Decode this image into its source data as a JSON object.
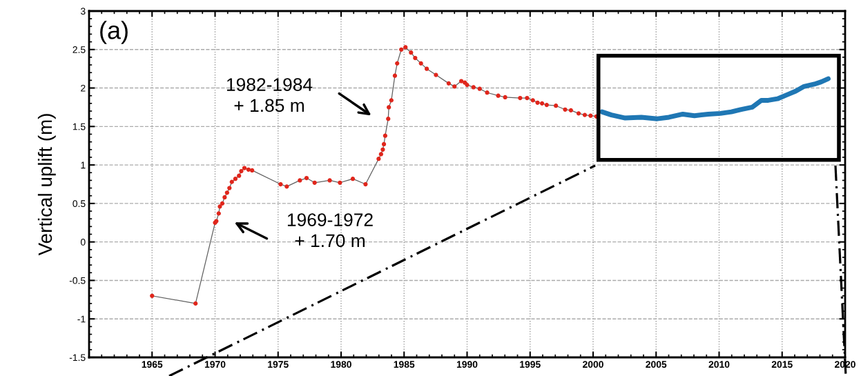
{
  "chart_data": {
    "type": "line",
    "ylabel": "Vertical uplift (m)",
    "xlim": [
      1960,
      2020
    ],
    "xticks": [
      {
        "value": 1960,
        "label": null
      },
      1965,
      1970,
      1975,
      1980,
      1985,
      1990,
      1995,
      2000,
      2005,
      2010,
      2015,
      2020
    ],
    "ylim": [
      -1.5,
      3
    ],
    "yticks": [
      -1.5,
      -1,
      -0.5,
      0,
      0.5,
      1,
      1.5,
      2,
      2.5,
      3
    ],
    "grid": true,
    "marker": "circle",
    "line_style": "solid",
    "series": [
      {
        "color": "#e0261c",
        "x": [
          1965.0,
          1968.45,
          1970.0,
          1970.1,
          1970.29,
          1970.38,
          1970.57,
          1970.76,
          1970.95,
          1971.14,
          1971.33,
          1971.61,
          1971.9,
          1972.08,
          1972.33,
          1972.65,
          1972.94,
          1975.2,
          1975.69,
          1976.73,
          1977.26,
          1977.9,
          1979.1,
          1979.91,
          1980.93,
          1981.94,
          1982.98,
          1983.17,
          1983.31,
          1983.4,
          1983.5,
          1983.74,
          1983.79,
          1983.99,
          1984.27,
          1984.45,
          1984.78,
          1985.11,
          1985.55,
          1985.88,
          1986.34,
          1986.8,
          1987.53,
          1988.54,
          1989.0,
          1989.54,
          1989.82,
          1990.0,
          1990.51,
          1991.0,
          1991.59,
          1992.47,
          1993.02,
          1994.21,
          1994.76,
          1995.22,
          1995.59,
          1995.95,
          1996.32,
          1997.05,
          1997.78,
          1998.24,
          1998.85,
          1999.34,
          1999.8,
          2000.26
        ],
        "values": [
          -0.7,
          -0.8,
          0.25,
          0.27,
          0.37,
          0.46,
          0.5,
          0.58,
          0.64,
          0.7,
          0.78,
          0.82,
          0.86,
          0.92,
          0.96,
          0.94,
          0.93,
          0.75,
          0.72,
          0.8,
          0.83,
          0.77,
          0.8,
          0.77,
          0.82,
          0.75,
          1.08,
          1.14,
          1.2,
          1.27,
          1.38,
          1.6,
          1.75,
          1.84,
          2.16,
          2.32,
          2.5,
          2.53,
          2.46,
          2.39,
          2.32,
          2.25,
          2.17,
          2.06,
          2.02,
          2.09,
          2.07,
          2.04,
          2.01,
          1.99,
          1.94,
          1.9,
          1.88,
          1.87,
          1.87,
          1.84,
          1.81,
          1.8,
          1.78,
          1.77,
          1.72,
          1.71,
          1.67,
          1.65,
          1.64,
          1.63
        ]
      },
      {
        "color": "#1f77b4",
        "marker": "none",
        "x": [
          2000.71,
          2001.45,
          2002.55,
          2003.83,
          2005.1,
          2006.02,
          2007.12,
          2008.04,
          2009.13,
          2010.11,
          2010.97,
          2011.7,
          2012.62,
          2013.35,
          2013.9,
          2014.63,
          2015.36,
          2016.09,
          2016.74,
          2017.56,
          2018.11,
          2018.66
        ],
        "values": [
          1.69,
          1.65,
          1.61,
          1.62,
          1.6,
          1.62,
          1.66,
          1.64,
          1.66,
          1.67,
          1.69,
          1.72,
          1.75,
          1.84,
          1.84,
          1.86,
          1.91,
          1.96,
          2.02,
          2.05,
          2.08,
          2.12
        ]
      }
    ],
    "annotations": [
      "(a)",
      "1982-1984\n+ 1.85 m",
      "1969-1972\n+ 1.70 m"
    ]
  }
}
